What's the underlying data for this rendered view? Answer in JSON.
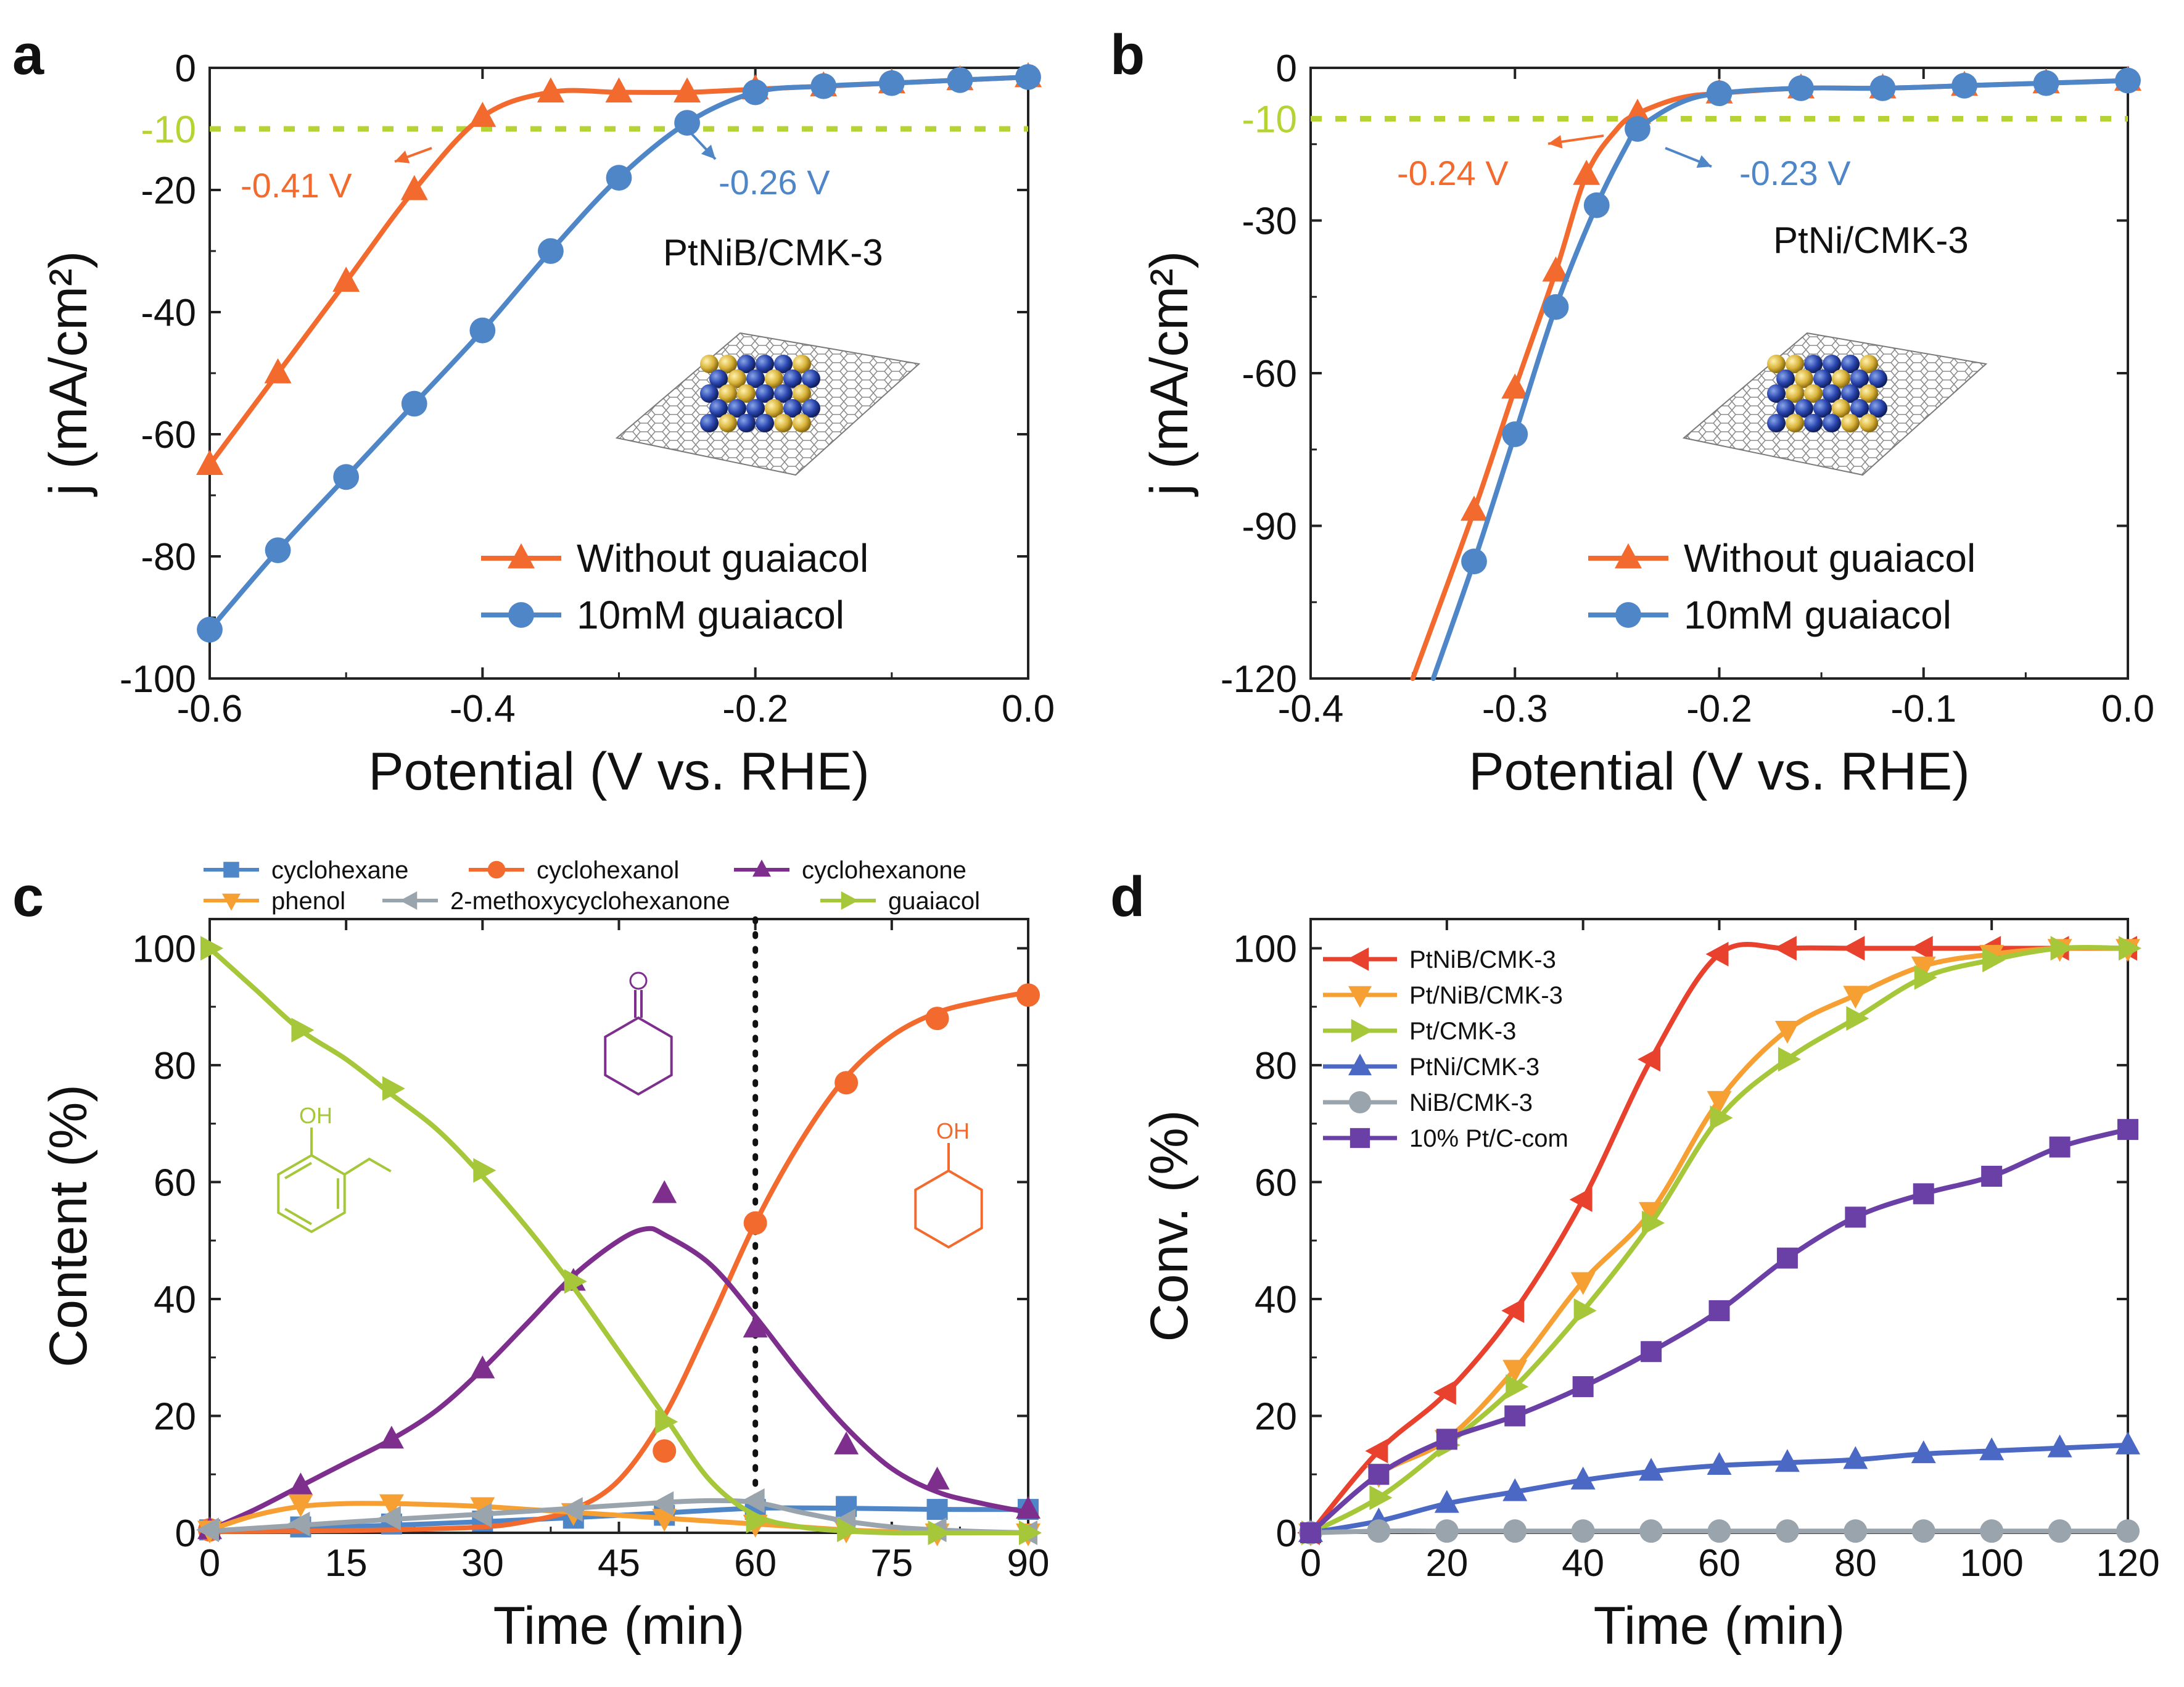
{
  "chart_data": [
    {
      "id": "a",
      "type": "line",
      "panel_label": "a",
      "xlabel": "Potential (V vs. RHE)",
      "ylabel": "j (mA/cm²)",
      "xlim": [
        -0.6,
        0.0
      ],
      "ylim": [
        -100,
        0
      ],
      "xticks": [
        -0.6,
        -0.4,
        -0.2,
        0.0
      ],
      "xtick_labels": [
        "-0.6",
        "-0.4",
        "-0.2",
        "0.0"
      ],
      "yticks": [
        0,
        -20,
        -40,
        -60,
        -80,
        -100
      ],
      "ytick_labels": [
        "0",
        "-20",
        "-40",
        "-60",
        "-80",
        "-100"
      ],
      "reference_line": {
        "y": -10,
        "label": "-10",
        "color": "#b5d334"
      },
      "series": [
        {
          "name": "Without guaiacol",
          "color": "#f26a2e",
          "marker": "triangle-up",
          "x": [
            -0.6,
            -0.55,
            -0.5,
            -0.45,
            -0.4,
            -0.35,
            -0.3,
            -0.25,
            -0.2,
            -0.15,
            -0.1,
            -0.05,
            0.0
          ],
          "y": [
            -65,
            -50,
            -35,
            -20,
            -8,
            -4,
            -4,
            -4,
            -3.5,
            -3,
            -2.5,
            -2,
            -1.5
          ]
        },
        {
          "name": "10mM guaiacol",
          "color": "#4e86c8",
          "marker": "circle",
          "x": [
            -0.6,
            -0.55,
            -0.5,
            -0.45,
            -0.4,
            -0.35,
            -0.3,
            -0.25,
            -0.2,
            -0.15,
            -0.1,
            -0.05,
            0.0
          ],
          "y": [
            -92,
            -79,
            -67,
            -55,
            -43,
            -30,
            -18,
            -9,
            -4,
            -3,
            -2.5,
            -2,
            -1.5
          ]
        }
      ],
      "annotations": [
        {
          "text": "-0.41 V",
          "color": "#f26a2e"
        },
        {
          "text": "-0.26 V",
          "color": "#4e86c8"
        }
      ],
      "catalyst_label": "PtNiB/CMK-3"
    },
    {
      "id": "b",
      "type": "line",
      "panel_label": "b",
      "xlabel": "Potential (V vs. RHE)",
      "ylabel": "j (mA/cm²)",
      "xlim": [
        -0.4,
        0.0
      ],
      "ylim": [
        -120,
        0
      ],
      "xticks": [
        -0.4,
        -0.3,
        -0.2,
        -0.1,
        0.0
      ],
      "xtick_labels": [
        "-0.4",
        "-0.3",
        "-0.2",
        "-0.1",
        "0.0"
      ],
      "yticks": [
        0,
        -30,
        -60,
        -90,
        -120
      ],
      "ytick_labels": [
        "0",
        "-30",
        "-60",
        "-90",
        "-120"
      ],
      "reference_line": {
        "y": -10,
        "label": "-10",
        "color": "#b5d334"
      },
      "series": [
        {
          "name": "Without guaiacol",
          "color": "#f26a2e",
          "marker": "triangle-up",
          "x": [
            -0.32,
            -0.3,
            -0.28,
            -0.265,
            -0.24,
            -0.2,
            -0.16,
            -0.12,
            -0.08,
            -0.04,
            0.0
          ],
          "y": [
            -87,
            -63,
            -40,
            -21,
            -9,
            -5,
            -4,
            -4,
            -3.5,
            -3,
            -2.5
          ],
          "line_x": [
            -0.35,
            -0.32,
            -0.3,
            -0.28,
            -0.265,
            -0.25,
            -0.24,
            -0.22,
            -0.2,
            -0.16,
            -0.12,
            -0.08,
            -0.04,
            0.0
          ],
          "line_y": [
            -120,
            -87,
            -63,
            -40,
            -21,
            -12,
            -9,
            -6,
            -5,
            -4,
            -4,
            -3.5,
            -3,
            -2.5
          ]
        },
        {
          "name": "10mM guaiacol",
          "color": "#4e86c8",
          "marker": "circle",
          "x": [
            -0.32,
            -0.3,
            -0.28,
            -0.26,
            -0.24,
            -0.2,
            -0.16,
            -0.12,
            -0.08,
            -0.04,
            0.0
          ],
          "y": [
            -97,
            -72,
            -47,
            -27,
            -12,
            -5,
            -4,
            -4,
            -3.5,
            -3,
            -2.5
          ],
          "line_x": [
            -0.34,
            -0.32,
            -0.3,
            -0.28,
            -0.26,
            -0.245,
            -0.24,
            -0.22,
            -0.2,
            -0.16,
            -0.12,
            -0.08,
            -0.04,
            0.0
          ],
          "line_y": [
            -120,
            -97,
            -72,
            -47,
            -27,
            -15,
            -12,
            -7,
            -5,
            -4,
            -4,
            -3.5,
            -3,
            -2.5
          ]
        }
      ],
      "annotations": [
        {
          "text": "-0.24 V",
          "color": "#f26a2e"
        },
        {
          "text": "-0.23 V",
          "color": "#4e86c8"
        }
      ],
      "catalyst_label": "PtNi/CMK-3"
    },
    {
      "id": "c",
      "type": "line",
      "panel_label": "c",
      "xlabel": "Time (min)",
      "ylabel": "Content (%)",
      "xlim": [
        0,
        90
      ],
      "ylim": [
        0,
        105
      ],
      "xticks": [
        0,
        15,
        30,
        45,
        60,
        75,
        90
      ],
      "xtick_labels": [
        "0",
        "15",
        "30",
        "45",
        "60",
        "75",
        "90"
      ],
      "yticks": [
        0,
        20,
        40,
        60,
        80,
        100
      ],
      "ytick_labels": [
        "0",
        "20",
        "40",
        "60",
        "80",
        "100"
      ],
      "vline_x": 60,
      "series": [
        {
          "name": "cyclohexane",
          "color": "#4e86c8",
          "marker": "square",
          "x": [
            0,
            10,
            20,
            30,
            40,
            50,
            60,
            70,
            80,
            90
          ],
          "y": [
            0.5,
            1,
            1.5,
            2,
            2.5,
            3,
            4,
            4.5,
            4,
            4
          ],
          "fit_x": [
            0,
            10,
            20,
            30,
            40,
            50,
            60,
            70,
            80,
            90
          ],
          "fit_y": [
            0.3,
            0.8,
            1.3,
            1.9,
            2.6,
            3.4,
            4.2,
            4.2,
            4.0,
            4.0
          ]
        },
        {
          "name": "cyclohexanol",
          "color": "#f26a2e",
          "marker": "circle",
          "x": [
            0,
            50,
            60,
            70,
            80,
            90
          ],
          "y": [
            0.5,
            14,
            53,
            77,
            88,
            92
          ],
          "fit_x": [
            0,
            10,
            20,
            30,
            35,
            40,
            45,
            50,
            55,
            60,
            65,
            70,
            75,
            80,
            85,
            90
          ],
          "fit_y": [
            0.2,
            0.3,
            0.5,
            1,
            2,
            4,
            9,
            20,
            36,
            53,
            67,
            78,
            85,
            89,
            91,
            92.5
          ]
        },
        {
          "name": "cyclohexanone",
          "color": "#7e2f8e",
          "marker": "triangle-up",
          "x": [
            0,
            10,
            20,
            30,
            40,
            50,
            60,
            70,
            80,
            90
          ],
          "y": [
            0.5,
            8,
            16,
            28,
            43,
            58,
            35,
            15,
            9,
            4
          ],
          "fit_x": [
            0,
            5,
            10,
            15,
            20,
            25,
            30,
            35,
            40,
            45,
            48,
            50,
            55,
            60,
            65,
            70,
            75,
            80,
            85,
            90
          ],
          "fit_y": [
            0.5,
            4,
            8,
            12,
            16,
            21,
            28,
            36,
            44,
            50,
            52,
            51,
            46,
            37,
            27,
            18,
            11,
            7,
            5,
            3.5
          ]
        },
        {
          "name": "phenol",
          "color": "#f6a033",
          "marker": "triangle-down",
          "x": [
            0,
            10,
            20,
            30,
            40,
            50,
            60,
            70,
            80,
            90
          ],
          "y": [
            0.5,
            5,
            5,
            4.5,
            3.5,
            2.5,
            1.5,
            0.5,
            0,
            0
          ],
          "fit_x": [
            0,
            5,
            10,
            15,
            20,
            25,
            30,
            35,
            40,
            45,
            50,
            55,
            60,
            65,
            70,
            75,
            80,
            85,
            90
          ],
          "fit_y": [
            0.5,
            3,
            4.5,
            5,
            5,
            4.8,
            4.5,
            4,
            3.5,
            3,
            2.5,
            2,
            1.5,
            1,
            0.5,
            0.2,
            0,
            0,
            0
          ]
        },
        {
          "name": "2-methoxycyclohexanone",
          "color": "#9aa4ad",
          "marker": "triangle-left",
          "x": [
            0,
            10,
            20,
            30,
            40,
            50,
            60,
            70,
            80,
            90
          ],
          "y": [
            0.5,
            1.5,
            2.5,
            3,
            4,
            5,
            5.5,
            2,
            0.5,
            0
          ],
          "fit_x": [
            0,
            10,
            20,
            30,
            40,
            50,
            55,
            60,
            65,
            70,
            75,
            80,
            85,
            90
          ],
          "fit_y": [
            0.3,
            1.3,
            2.3,
            3.2,
            4.2,
            5.2,
            5.5,
            5.2,
            3.5,
            2,
            1,
            0.5,
            0.2,
            0
          ]
        },
        {
          "name": "guaiacol",
          "color": "#a6c73a",
          "marker": "triangle-right",
          "x": [
            0,
            10,
            20,
            30,
            40,
            50,
            60,
            70,
            80,
            90
          ],
          "y": [
            100,
            86,
            76,
            62,
            43,
            19,
            2,
            0.5,
            0,
            0
          ],
          "fit_x": [
            0,
            5,
            10,
            15,
            20,
            25,
            30,
            35,
            40,
            45,
            50,
            55,
            60,
            65,
            70,
            75,
            80,
            85,
            90
          ],
          "fit_y": [
            100,
            93,
            86,
            81,
            75,
            69,
            61,
            52,
            42,
            31,
            20,
            9,
            3,
            1,
            0.3,
            0,
            0,
            0,
            0
          ]
        }
      ],
      "legend_columns": 3
    },
    {
      "id": "d",
      "type": "line",
      "panel_label": "d",
      "xlabel": "Time (min)",
      "ylabel": "Conv. (%)",
      "xlim": [
        0,
        120
      ],
      "ylim": [
        0,
        105
      ],
      "xticks": [
        0,
        20,
        40,
        60,
        80,
        100,
        120
      ],
      "xtick_labels": [
        "0",
        "20",
        "40",
        "60",
        "80",
        "100",
        "120"
      ],
      "yticks": [
        0,
        20,
        40,
        60,
        80,
        100
      ],
      "ytick_labels": [
        "0",
        "20",
        "40",
        "60",
        "80",
        "100"
      ],
      "series": [
        {
          "name": "PtNiB/CMK-3",
          "color": "#e8412e",
          "marker": "triangle-left",
          "x": [
            0,
            10,
            20,
            30,
            40,
            50,
            60,
            70,
            80,
            90,
            100,
            110,
            120
          ],
          "y": [
            0,
            14,
            24,
            38,
            57,
            81,
            99,
            100,
            100,
            100,
            100,
            100,
            100
          ]
        },
        {
          "name": "Pt/NiB/CMK-3",
          "color": "#f6a033",
          "marker": "triangle-down",
          "x": [
            0,
            10,
            20,
            30,
            40,
            50,
            60,
            70,
            80,
            90,
            100,
            110,
            120
          ],
          "y": [
            0,
            10,
            16,
            28,
            43,
            55,
            74,
            86,
            92,
            97,
            99,
            100,
            100
          ]
        },
        {
          "name": "Pt/CMK-3",
          "color": "#a6c73a",
          "marker": "triangle-right",
          "x": [
            0,
            10,
            20,
            30,
            40,
            50,
            60,
            70,
            80,
            90,
            100,
            110,
            120
          ],
          "y": [
            0,
            6,
            15,
            25,
            38,
            53,
            71,
            81,
            88,
            95,
            98,
            100,
            100
          ]
        },
        {
          "name": "PtNi/CMK-3",
          "color": "#4a68c4",
          "marker": "triangle-up",
          "x": [
            0,
            10,
            20,
            30,
            40,
            50,
            60,
            70,
            80,
            90,
            100,
            110,
            120
          ],
          "y": [
            0,
            2,
            5,
            7,
            9,
            10.5,
            11.5,
            12,
            12.5,
            13.5,
            14,
            14.5,
            15
          ]
        },
        {
          "name": "NiB/CMK-3",
          "color": "#9aa4ad",
          "marker": "circle",
          "x": [
            0,
            10,
            20,
            30,
            40,
            50,
            60,
            70,
            80,
            90,
            100,
            110,
            120
          ],
          "y": [
            0,
            0.3,
            0.3,
            0.3,
            0.3,
            0.3,
            0.3,
            0.3,
            0.3,
            0.3,
            0.3,
            0.3,
            0.3
          ]
        },
        {
          "name": "10% Pt/C-com",
          "color": "#6a3fa6",
          "marker": "square",
          "x": [
            0,
            10,
            20,
            30,
            40,
            50,
            60,
            70,
            80,
            90,
            100,
            110,
            120
          ],
          "y": [
            0,
            10,
            16,
            20,
            25,
            31,
            38,
            47,
            54,
            58,
            61,
            66,
            69
          ]
        }
      ]
    }
  ]
}
